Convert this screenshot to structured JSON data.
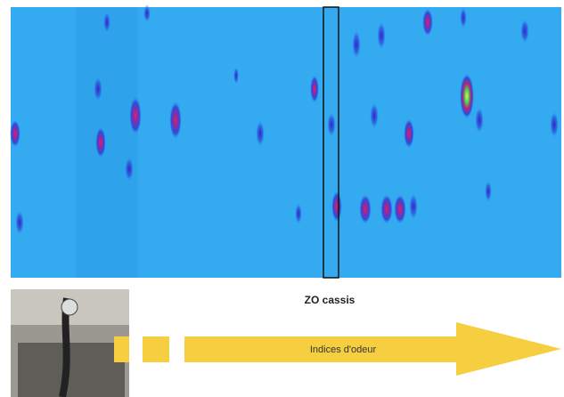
{
  "heatmap_caption": "ZO cassis",
  "arrow_label": "Indices d'odeur"
}
